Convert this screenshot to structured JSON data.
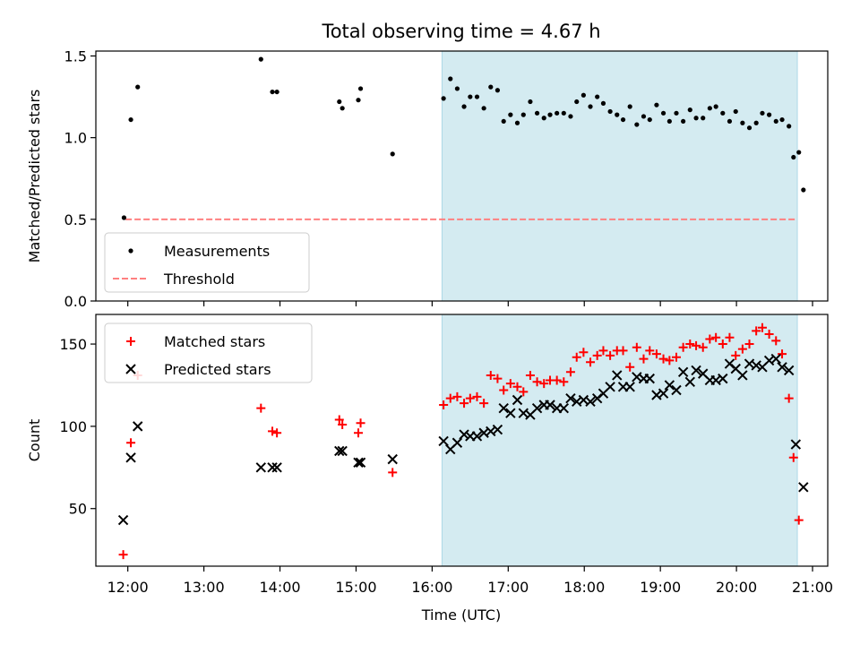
{
  "chart_data": {
    "title": "Total observing time = 4.67 h",
    "xlabel": "Time (UTC)",
    "xticks": [
      "12:00",
      "13:00",
      "14:00",
      "15:00",
      "16:00",
      "17:00",
      "18:00",
      "19:00",
      "20:00",
      "21:00"
    ],
    "xlim": [
      11.58,
      21.2
    ],
    "observing_window": [
      16.13,
      20.8
    ],
    "colors": {
      "band": "#d4ebf1",
      "band_edge": "#add8e6",
      "matched": "#ff0000",
      "predicted": "#000000",
      "threshold": "#ff8080"
    },
    "panels": [
      {
        "type": "scatter",
        "ylabel": "Matched/Predicted stars",
        "ylim": [
          0,
          1.53
        ],
        "yticks": [
          "0.0",
          "0.5",
          "1.0",
          "1.5"
        ],
        "threshold": {
          "name": "Threshold",
          "value": 0.5,
          "x_range": [
            11.97,
            20.8
          ],
          "style": "dashed"
        },
        "legend": {
          "placement": "lower-left",
          "entries": [
            "Measurements",
            "Threshold"
          ]
        },
        "series": [
          {
            "name": "Measurements",
            "marker": "dot",
            "points": [
              [
                11.95,
                0.51
              ],
              [
                12.04,
                1.11
              ],
              [
                12.13,
                1.31
              ],
              [
                13.75,
                1.48
              ],
              [
                13.9,
                1.28
              ],
              [
                13.96,
                1.28
              ],
              [
                14.78,
                1.22
              ],
              [
                14.82,
                1.18
              ],
              [
                15.03,
                1.23
              ],
              [
                15.06,
                1.3
              ],
              [
                15.48,
                0.9
              ],
              [
                16.15,
                1.24
              ],
              [
                16.24,
                1.36
              ],
              [
                16.33,
                1.3
              ],
              [
                16.42,
                1.19
              ],
              [
                16.5,
                1.25
              ],
              [
                16.59,
                1.25
              ],
              [
                16.68,
                1.18
              ],
              [
                16.77,
                1.31
              ],
              [
                16.86,
                1.29
              ],
              [
                16.94,
                1.1
              ],
              [
                17.03,
                1.14
              ],
              [
                17.12,
                1.09
              ],
              [
                17.2,
                1.14
              ],
              [
                17.29,
                1.22
              ],
              [
                17.38,
                1.15
              ],
              [
                17.47,
                1.12
              ],
              [
                17.55,
                1.14
              ],
              [
                17.64,
                1.15
              ],
              [
                17.73,
                1.15
              ],
              [
                17.82,
                1.13
              ],
              [
                17.9,
                1.22
              ],
              [
                17.99,
                1.26
              ],
              [
                18.08,
                1.19
              ],
              [
                18.17,
                1.25
              ],
              [
                18.25,
                1.21
              ],
              [
                18.34,
                1.16
              ],
              [
                18.43,
                1.14
              ],
              [
                18.51,
                1.11
              ],
              [
                18.6,
                1.19
              ],
              [
                18.69,
                1.08
              ],
              [
                18.78,
                1.13
              ],
              [
                18.86,
                1.11
              ],
              [
                18.95,
                1.2
              ],
              [
                19.04,
                1.15
              ],
              [
                19.12,
                1.1
              ],
              [
                19.21,
                1.15
              ],
              [
                19.3,
                1.1
              ],
              [
                19.39,
                1.17
              ],
              [
                19.47,
                1.12
              ],
              [
                19.56,
                1.12
              ],
              [
                19.65,
                1.18
              ],
              [
                19.73,
                1.19
              ],
              [
                19.82,
                1.15
              ],
              [
                19.91,
                1.1
              ],
              [
                19.99,
                1.16
              ],
              [
                20.08,
                1.09
              ],
              [
                20.17,
                1.06
              ],
              [
                20.26,
                1.09
              ],
              [
                20.34,
                1.15
              ],
              [
                20.43,
                1.14
              ],
              [
                20.52,
                1.1
              ],
              [
                20.6,
                1.11
              ],
              [
                20.69,
                1.07
              ],
              [
                20.75,
                0.88
              ],
              [
                20.82,
                0.91
              ],
              [
                20.88,
                0.68
              ]
            ]
          }
        ]
      },
      {
        "type": "scatter",
        "ylabel": "Count",
        "ylim": [
          15,
          168
        ],
        "yticks": [
          "50",
          "100",
          "150"
        ],
        "legend": {
          "placement": "upper-left",
          "entries": [
            "Matched stars",
            "Predicted stars"
          ]
        },
        "series": [
          {
            "name": "Matched stars",
            "marker": "plus",
            "points": [
              [
                11.94,
                22
              ],
              [
                12.04,
                90
              ],
              [
                12.13,
                131
              ],
              [
                13.75,
                111
              ],
              [
                13.9,
                97
              ],
              [
                13.96,
                96
              ],
              [
                14.78,
                104
              ],
              [
                14.82,
                101
              ],
              [
                15.03,
                96
              ],
              [
                15.06,
                102
              ],
              [
                15.48,
                72
              ],
              [
                16.15,
                113
              ],
              [
                16.24,
                117
              ],
              [
                16.33,
                118
              ],
              [
                16.42,
                114
              ],
              [
                16.5,
                117
              ],
              [
                16.59,
                118
              ],
              [
                16.68,
                114
              ],
              [
                16.77,
                131
              ],
              [
                16.86,
                129
              ],
              [
                16.94,
                122
              ],
              [
                17.03,
                126
              ],
              [
                17.12,
                124
              ],
              [
                17.2,
                121
              ],
              [
                17.29,
                131
              ],
              [
                17.38,
                127
              ],
              [
                17.47,
                126
              ],
              [
                17.55,
                128
              ],
              [
                17.64,
                128
              ],
              [
                17.73,
                127
              ],
              [
                17.82,
                133
              ],
              [
                17.9,
                142
              ],
              [
                17.99,
                145
              ],
              [
                18.08,
                139
              ],
              [
                18.17,
                143
              ],
              [
                18.25,
                146
              ],
              [
                18.34,
                143
              ],
              [
                18.43,
                146
              ],
              [
                18.51,
                146
              ],
              [
                18.6,
                136
              ],
              [
                18.69,
                148
              ],
              [
                18.78,
                141
              ],
              [
                18.86,
                146
              ],
              [
                18.95,
                144
              ],
              [
                19.04,
                141
              ],
              [
                19.12,
                140
              ],
              [
                19.21,
                142
              ],
              [
                19.3,
                148
              ],
              [
                19.39,
                150
              ],
              [
                19.47,
                149
              ],
              [
                19.56,
                148
              ],
              [
                19.65,
                153
              ],
              [
                19.73,
                154
              ],
              [
                19.82,
                150
              ],
              [
                19.91,
                154
              ],
              [
                19.99,
                143
              ],
              [
                20.08,
                147
              ],
              [
                20.17,
                150
              ],
              [
                20.26,
                158
              ],
              [
                20.34,
                160
              ],
              [
                20.43,
                156
              ],
              [
                20.52,
                152
              ],
              [
                20.6,
                144
              ],
              [
                20.69,
                117
              ],
              [
                20.75,
                81
              ],
              [
                20.82,
                43
              ]
            ]
          },
          {
            "name": "Predicted stars",
            "marker": "x",
            "points": [
              [
                11.94,
                43
              ],
              [
                12.04,
                81
              ],
              [
                12.13,
                100
              ],
              [
                13.75,
                75
              ],
              [
                13.9,
                75
              ],
              [
                13.96,
                75
              ],
              [
                14.78,
                85
              ],
              [
                14.82,
                85
              ],
              [
                15.03,
                78
              ],
              [
                15.06,
                78
              ],
              [
                15.48,
                80
              ],
              [
                16.15,
                91
              ],
              [
                16.24,
                86
              ],
              [
                16.33,
                90
              ],
              [
                16.42,
                95
              ],
              [
                16.5,
                94
              ],
              [
                16.59,
                94
              ],
              [
                16.68,
                96
              ],
              [
                16.77,
                97
              ],
              [
                16.86,
                98
              ],
              [
                16.94,
                111
              ],
              [
                17.03,
                108
              ],
              [
                17.12,
                116
              ],
              [
                17.2,
                108
              ],
              [
                17.29,
                107
              ],
              [
                17.38,
                111
              ],
              [
                17.47,
                113
              ],
              [
                17.55,
                113
              ],
              [
                17.64,
                111
              ],
              [
                17.73,
                111
              ],
              [
                17.82,
                117
              ],
              [
                17.9,
                115
              ],
              [
                17.99,
                116
              ],
              [
                18.08,
                115
              ],
              [
                18.17,
                117
              ],
              [
                18.25,
                120
              ],
              [
                18.34,
                124
              ],
              [
                18.43,
                131
              ],
              [
                18.51,
                124
              ],
              [
                18.6,
                124
              ],
              [
                18.69,
                130
              ],
              [
                18.78,
                129
              ],
              [
                18.86,
                129
              ],
              [
                18.95,
                119
              ],
              [
                19.04,
                120
              ],
              [
                19.12,
                125
              ],
              [
                19.21,
                122
              ],
              [
                19.3,
                133
              ],
              [
                19.39,
                127
              ],
              [
                19.47,
                134
              ],
              [
                19.56,
                132
              ],
              [
                19.65,
                128
              ],
              [
                19.73,
                128
              ],
              [
                19.82,
                129
              ],
              [
                19.91,
                138
              ],
              [
                19.99,
                135
              ],
              [
                20.08,
                131
              ],
              [
                20.17,
                138
              ],
              [
                20.26,
                137
              ],
              [
                20.34,
                136
              ],
              [
                20.43,
                140
              ],
              [
                20.52,
                141
              ],
              [
                20.6,
                136
              ],
              [
                20.69,
                134
              ],
              [
                20.78,
                89
              ],
              [
                20.88,
                63
              ]
            ]
          }
        ]
      }
    ]
  }
}
